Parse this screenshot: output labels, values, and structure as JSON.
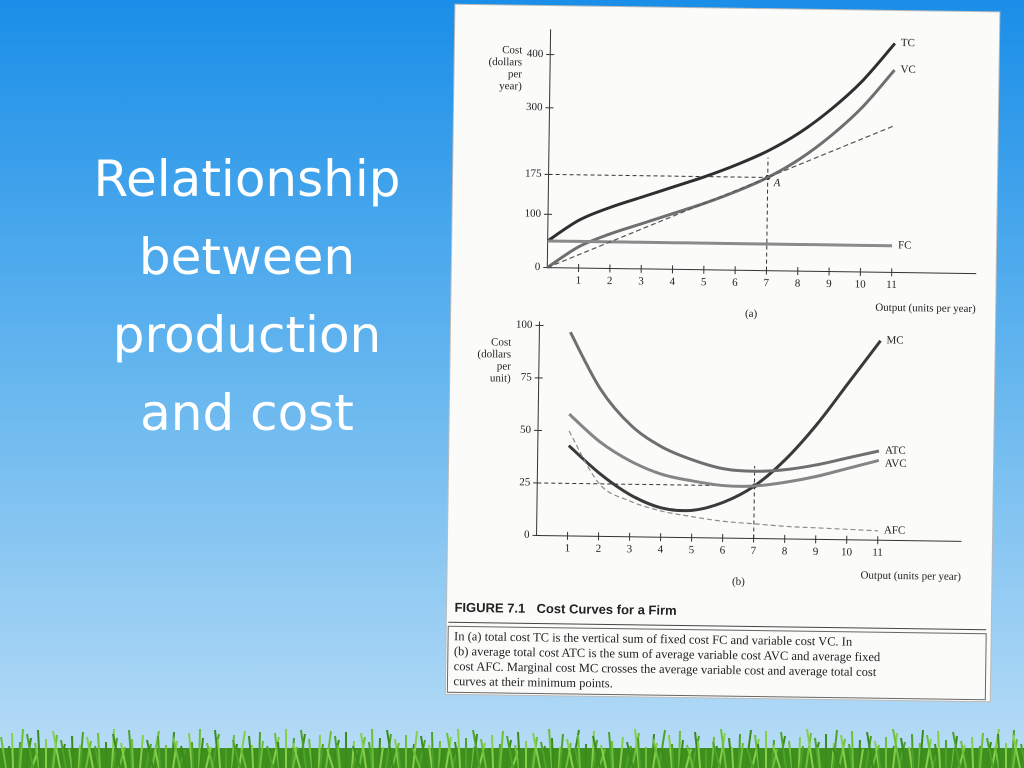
{
  "slide": {
    "title": "Relationship between production and cost"
  },
  "chart_data": [
    {
      "type": "line",
      "panel_label": "(a)",
      "ylabel": [
        "Cost",
        "(dollars",
        "per",
        "year)"
      ],
      "xlabel": "Output (units per year)",
      "x": [
        0,
        1,
        2,
        3,
        4,
        5,
        6,
        7,
        8,
        9,
        10,
        11
      ],
      "xlim": [
        0,
        13.7
      ],
      "ylim": [
        0,
        440
      ],
      "xticks": [
        1,
        2,
        3,
        4,
        5,
        6,
        7,
        8,
        9,
        10,
        11
      ],
      "yticks": [
        0,
        100,
        175,
        300,
        400
      ],
      "series": [
        {
          "name": "TC",
          "color": "#2f2f2f",
          "values": [
            50,
            90,
            115,
            135,
            155,
            175,
            198,
            225,
            260,
            305,
            360,
            430
          ]
        },
        {
          "name": "VC",
          "color": "#6f6f6f",
          "values": [
            0,
            40,
            65,
            85,
            105,
            125,
            148,
            175,
            210,
            255,
            310,
            380
          ]
        },
        {
          "name": "FC",
          "color": "#8a8a8a",
          "values": [
            50,
            50,
            50,
            50,
            50,
            50,
            50,
            50,
            50,
            50,
            50,
            50
          ]
        },
        {
          "color": "#555555",
          "dashed": true,
          "values": [
            0,
            25,
            50,
            75,
            100,
            125,
            150,
            175,
            200,
            225,
            250,
            275
          ]
        }
      ],
      "guides": [
        {
          "x": 7,
          "y": 175,
          "label": "A"
        }
      ]
    },
    {
      "type": "line",
      "panel_label": "(b)",
      "ylabel": [
        "Cost",
        "(dollars",
        "per",
        "unit)"
      ],
      "xlabel": "Output (units per year)",
      "x": [
        1,
        2,
        3,
        4,
        5,
        6,
        7,
        8,
        9,
        10,
        11
      ],
      "xlim": [
        0,
        13.7
      ],
      "ylim": [
        0,
        100
      ],
      "xticks": [
        1,
        2,
        3,
        4,
        5,
        6,
        7,
        8,
        9,
        10,
        11
      ],
      "yticks": [
        0,
        25,
        50,
        75,
        100
      ],
      "series": [
        {
          "name": "MC",
          "color": "#3a3a3a",
          "values": [
            43,
            30,
            20,
            14,
            13,
            17,
            25,
            38,
            55,
            75,
            95
          ]
        },
        {
          "name": "ATC",
          "color": "#6f6f6f",
          "values": [
            97,
            70,
            53,
            43,
            37,
            33,
            32,
            33,
            35.5,
            39,
            42.5
          ]
        },
        {
          "name": "AVC",
          "color": "#858585",
          "values": [
            58,
            45,
            36,
            30,
            27,
            25,
            25,
            27,
            30,
            34,
            38
          ]
        },
        {
          "name": "AFC",
          "color": "#8c8c8c",
          "dashed": true,
          "values": [
            50,
            25,
            17,
            12.5,
            10,
            8,
            7,
            6,
            5.5,
            5,
            4.5
          ]
        }
      ],
      "guides": [
        {
          "x": 7,
          "y": 25
        }
      ]
    }
  ],
  "figure": {
    "number": "FIGURE 7.1",
    "title": "Cost Curves for a Firm",
    "caption": [
      "In (a) total cost TC is the vertical sum of fixed cost FC and variable cost VC. In",
      "(b) average total cost ATC is the sum of average variable cost AVC and average fixed",
      "cost AFC. Marginal cost MC crosses the average variable cost and average total cost",
      "curves at their minimum points."
    ]
  }
}
